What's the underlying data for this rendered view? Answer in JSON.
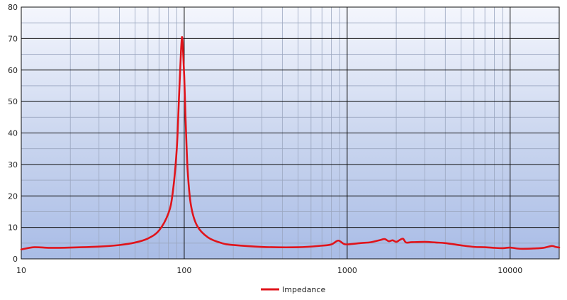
{
  "chart_data": {
    "type": "line",
    "title": "",
    "xlabel": "",
    "ylabel": "",
    "x_scale": "log",
    "xlim": [
      10,
      20000
    ],
    "ylim": [
      0,
      80
    ],
    "x_ticks": [
      10,
      100,
      1000,
      10000
    ],
    "x_tick_labels": [
      "10",
      "100",
      "1000",
      "10000"
    ],
    "y_ticks": [
      0,
      10,
      20,
      30,
      40,
      50,
      60,
      70,
      80
    ],
    "y_tick_labels": [
      "0",
      "10",
      "20",
      "30",
      "40",
      "50",
      "60",
      "70",
      "80"
    ],
    "grid": true,
    "legend_position": "bottom-center",
    "line_color": "#e0141b",
    "series": [
      {
        "name": "Impedance",
        "x": [
          10,
          12,
          15,
          20,
          30,
          40,
          50,
          60,
          70,
          80,
          85,
          90,
          93,
          95,
          96,
          97,
          98,
          100,
          102,
          105,
          110,
          120,
          140,
          170,
          200,
          300,
          500,
          700,
          800,
          880,
          950,
          1000,
          1200,
          1400,
          1600,
          1700,
          1800,
          1900,
          2000,
          2100,
          2200,
          2300,
          2500,
          3000,
          3500,
          4000,
          5000,
          6000,
          7000,
          8000,
          9000,
          10000,
          11000,
          12000,
          14000,
          16000,
          18000,
          19000,
          20000
        ],
        "y": [
          3.0,
          3.7,
          3.5,
          3.6,
          3.9,
          4.4,
          5.2,
          6.5,
          9.0,
          14.5,
          21.0,
          35.0,
          52.0,
          63.0,
          68.0,
          70.5,
          68.0,
          58.0,
          44.0,
          28.0,
          17.0,
          10.5,
          6.8,
          5.0,
          4.4,
          3.8,
          3.7,
          4.2,
          4.6,
          5.8,
          4.8,
          4.6,
          5.0,
          5.3,
          6.0,
          6.3,
          5.6,
          5.9,
          5.4,
          6.0,
          6.4,
          5.2,
          5.3,
          5.4,
          5.2,
          5.0,
          4.3,
          3.8,
          3.7,
          3.5,
          3.4,
          3.6,
          3.3,
          3.2,
          3.3,
          3.5,
          4.1,
          3.8,
          3.6
        ]
      }
    ]
  }
}
